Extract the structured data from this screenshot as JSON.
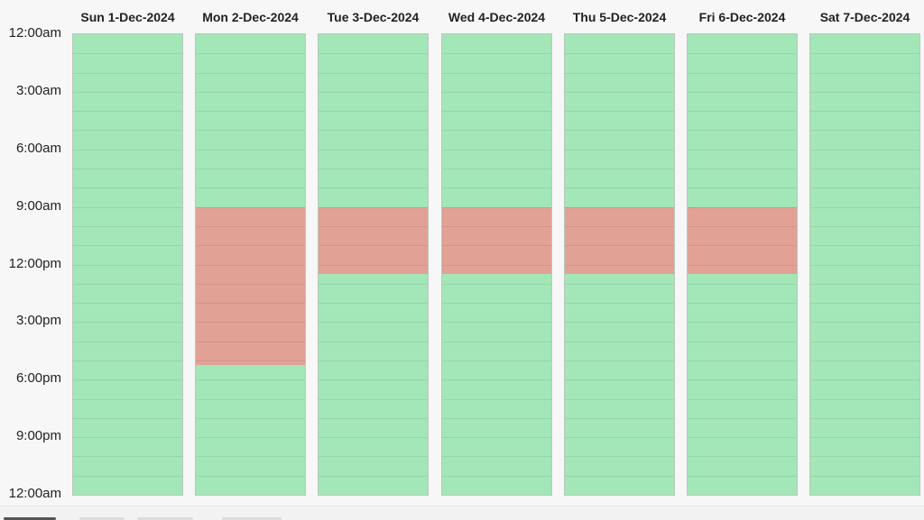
{
  "time_labels": [
    "12:00am",
    "3:00am",
    "6:00am",
    "9:00am",
    "12:00pm",
    "3:00pm",
    "6:00pm",
    "9:00pm",
    "12:00am"
  ],
  "days": [
    {
      "label": "Sun 1-Dec-2024",
      "busy": []
    },
    {
      "label": "Mon 2-Dec-2024",
      "busy": [
        {
          "start_hour": 9,
          "end_hour": 17.25
        }
      ]
    },
    {
      "label": "Tue 3-Dec-2024",
      "busy": [
        {
          "start_hour": 9,
          "end_hour": 12.5
        }
      ]
    },
    {
      "label": "Wed 4-Dec-2024",
      "busy": [
        {
          "start_hour": 9,
          "end_hour": 12.5
        }
      ]
    },
    {
      "label": "Thu 5-Dec-2024",
      "busy": [
        {
          "start_hour": 9,
          "end_hour": 12.5
        }
      ]
    },
    {
      "label": "Fri 6-Dec-2024",
      "busy": [
        {
          "start_hour": 9,
          "end_hour": 12.5
        }
      ]
    },
    {
      "label": "Sat 7-Dec-2024",
      "busy": []
    }
  ],
  "colors": {
    "available": "#a3e6b7",
    "busy": "#e1a195",
    "background": "#f7f7f7"
  }
}
